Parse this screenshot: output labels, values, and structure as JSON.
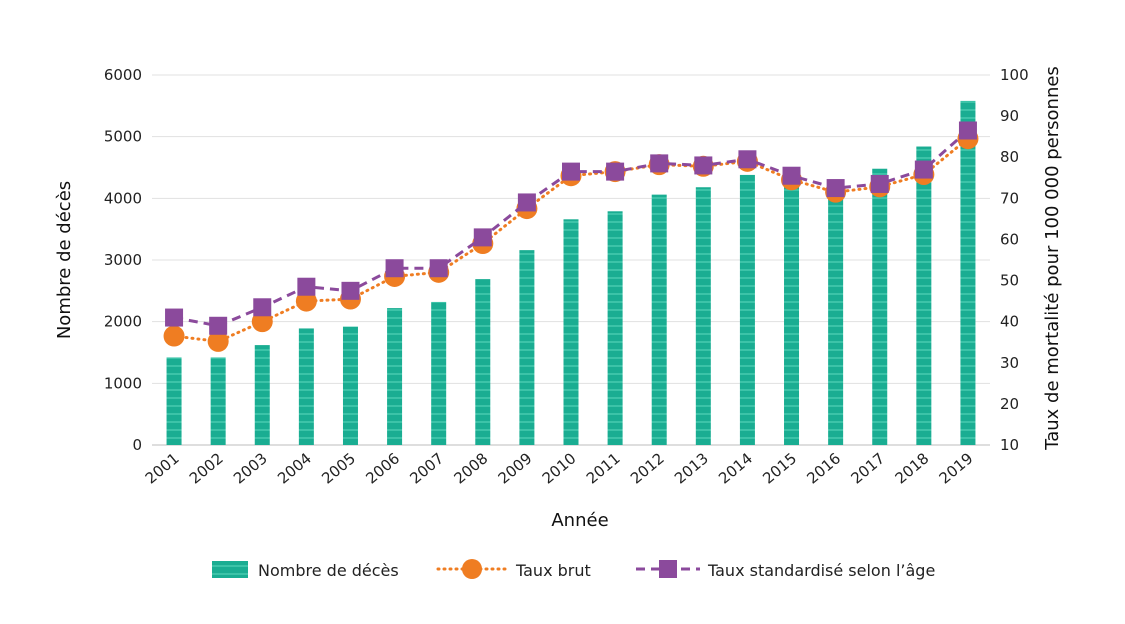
{
  "chart_data": {
    "type": "bar",
    "x": [
      "2001",
      "2002",
      "2003",
      "2004",
      "2005",
      "2006",
      "2007",
      "2008",
      "2009",
      "2010",
      "2011",
      "2012",
      "2013",
      "2014",
      "2015",
      "2016",
      "2017",
      "2018",
      "2019"
    ],
    "xlabel": "Année",
    "ylabel_left": "Nombre de décès",
    "ylabel_right": "Taux de mortalité pour 100 000 personnes",
    "ylim_left": [
      0,
      6000
    ],
    "ylim_right": [
      10,
      100
    ],
    "yticks_left": [
      "0",
      "1000",
      "2000",
      "3000",
      "4000",
      "5000",
      "6000"
    ],
    "yticks_right": [
      "10",
      "20",
      "30",
      "40",
      "50",
      "60",
      "70",
      "80",
      "90",
      "100"
    ],
    "grid": true,
    "legend_position": "bottom",
    "series": [
      {
        "name": "Nombre de décès",
        "kind": "bar",
        "axis": "left",
        "color": "#1aad92",
        "values": [
          1420,
          1420,
          1620,
          1890,
          1920,
          2220,
          2320,
          2690,
          3160,
          3660,
          3790,
          4060,
          4180,
          4380,
          4230,
          4100,
          4480,
          4840,
          5580
        ]
      },
      {
        "name": "Taux brut",
        "kind": "line",
        "axis": "right",
        "color": "#ef7d22",
        "line_style": "dotted",
        "marker": "circle",
        "values": [
          36.5,
          35.2,
          40,
          45,
          45.5,
          51,
          52,
          59,
          67.5,
          75.5,
          76.5,
          78.2,
          77.8,
          79,
          74.5,
          71.5,
          72.8,
          75.8,
          84.5
        ]
      },
      {
        "name": "Taux standardisé selon l’âge",
        "kind": "line",
        "axis": "right",
        "color": "#8b4a9c",
        "line_style": "dashed",
        "marker": "square",
        "values": [
          41,
          39,
          43.5,
          48.5,
          47.5,
          53,
          53,
          60.5,
          69,
          76.5,
          76.5,
          78.5,
          78,
          79.5,
          75.5,
          72.5,
          73.5,
          77,
          86.5
        ]
      }
    ]
  }
}
